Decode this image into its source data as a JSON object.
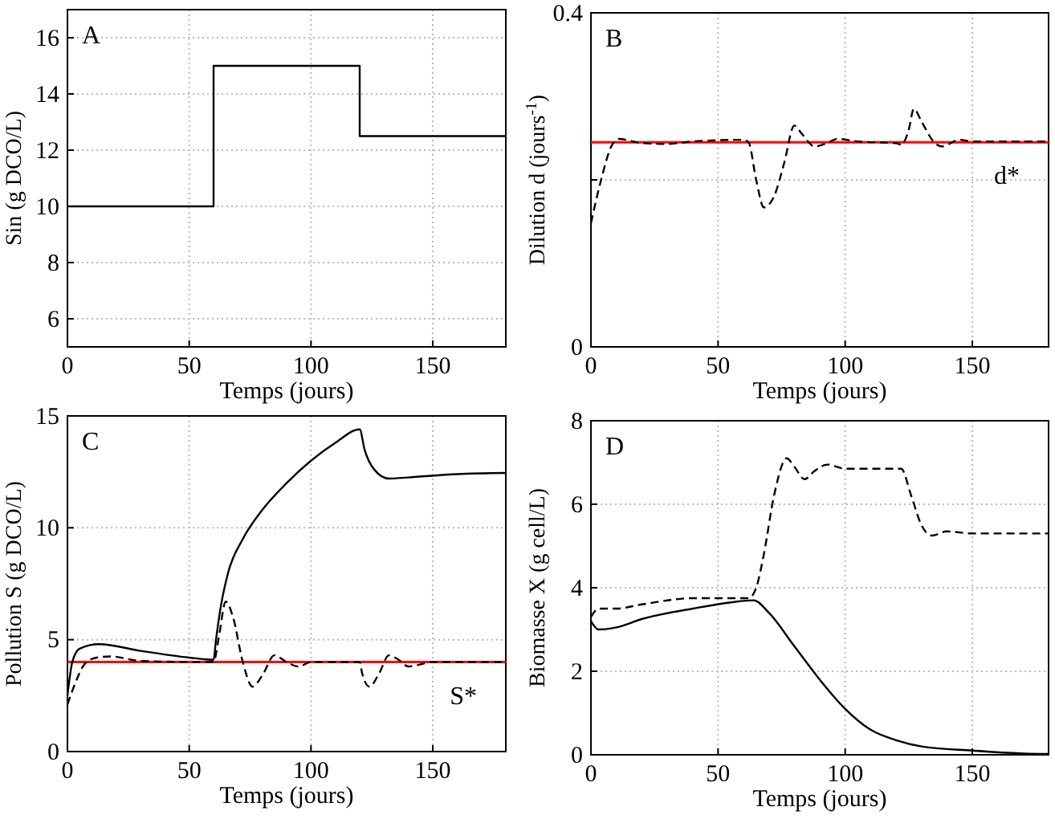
{
  "chart_data": [
    {
      "type": "step",
      "title": "A",
      "xlabel": "Temps (jours)",
      "ylabel": "Sin  (g DCO/L)",
      "xlim": [
        0,
        180
      ],
      "xticks": [
        0,
        50,
        100,
        150
      ],
      "ylim": [
        5,
        17
      ],
      "yticks": [
        6,
        8,
        10,
        12,
        14,
        16
      ],
      "grid": true,
      "series": [
        {
          "color": "#000000",
          "x": [
            0,
            60,
            120,
            180
          ],
          "values": [
            10,
            15,
            12.5,
            12.5
          ]
        }
      ]
    },
    {
      "type": "line",
      "title": "B",
      "xlabel": "Temps (jours)",
      "ylabel": "Dilution  d  (jours$^{-1}$)",
      "xlim": [
        0,
        180
      ],
      "xticks": [
        0,
        50,
        100,
        150
      ],
      "ylim": [
        0,
        0.4
      ],
      "yticks": [
        0,
        {
          "value": 0.2,
          "label": null
        },
        0.4
      ],
      "grid": true,
      "ref_lines": [
        {
          "axis": "y",
          "value": 0.245,
          "label": "d*",
          "color": "#ff0000"
        }
      ],
      "series": [
        {
          "color": "#000000",
          "line_style": "dashed",
          "x": [
            0,
            4,
            8,
            11,
            20,
            30,
            40,
            60,
            62,
            65,
            68,
            72,
            76,
            80,
            83,
            88,
            92,
            97,
            105,
            120,
            122,
            125,
            127,
            130,
            135,
            138,
            145,
            150,
            180
          ],
          "values": [
            0.148,
            0.2,
            0.24,
            0.249,
            0.244,
            0.243,
            0.246,
            0.248,
            0.245,
            0.2,
            0.167,
            0.18,
            0.22,
            0.265,
            0.255,
            0.24,
            0.243,
            0.249,
            0.246,
            0.244,
            0.242,
            0.26,
            0.285,
            0.27,
            0.245,
            0.24,
            0.248,
            0.246,
            0.246
          ]
        }
      ]
    },
    {
      "type": "line",
      "title": "C",
      "xlabel": "Temps (jours)",
      "ylabel": "Pollution  S  (g DCO/L)",
      "xlim": [
        0,
        180
      ],
      "xticks": [
        0,
        50,
        100,
        150
      ],
      "ylim": [
        0,
        15
      ],
      "yticks": [
        0,
        5,
        10,
        15
      ],
      "grid": true,
      "ref_lines": [
        {
          "axis": "y",
          "value": 4,
          "label": "S*",
          "color": "#ff0000"
        }
      ],
      "series": [
        {
          "color": "#000000",
          "line_style": "solid",
          "x": [
            0,
            2,
            5,
            13,
            30,
            50,
            60,
            61,
            63,
            66,
            72,
            80,
            90,
            100,
            110,
            120,
            122,
            126,
            132,
            140,
            160,
            180
          ],
          "values": [
            2.5,
            4,
            4.6,
            4.8,
            4.5,
            4.2,
            4.1,
            5,
            6.5,
            8,
            9.5,
            10.8,
            12,
            13,
            13.8,
            14.4,
            13.5,
            12.6,
            12.2,
            12.25,
            12.4,
            12.45
          ]
        },
        {
          "color": "#000000",
          "line_style": "dashed",
          "x": [
            0,
            3,
            7,
            12,
            18,
            30,
            60,
            62,
            65,
            68,
            72,
            76,
            80,
            85,
            90,
            95,
            100,
            120,
            121,
            124,
            128,
            132,
            136,
            140,
            145,
            150,
            180
          ],
          "values": [
            2.1,
            3,
            3.9,
            4.2,
            4.25,
            4.05,
            4,
            5,
            6.7,
            6,
            4,
            2.9,
            3.4,
            4.3,
            4,
            3.8,
            4,
            4,
            3.5,
            2.9,
            3.5,
            4.3,
            4.1,
            3.8,
            3.9,
            4,
            4
          ]
        }
      ]
    },
    {
      "type": "line",
      "title": "D",
      "xlabel": "Temps (jours)",
      "ylabel": "Biomasse  X  (g cell/L)",
      "xlim": [
        0,
        180
      ],
      "xticks": [
        0,
        50,
        100,
        150
      ],
      "ylim": [
        0,
        8
      ],
      "yticks": [
        0,
        2,
        4,
        6,
        8
      ],
      "grid": true,
      "series": [
        {
          "color": "#000000",
          "line_style": "dashed",
          "x": [
            0,
            3,
            10,
            20,
            40,
            62,
            65,
            68,
            72,
            77,
            80,
            84,
            88,
            93,
            100,
            110,
            122,
            126,
            130,
            134,
            140,
            150,
            180
          ],
          "values": [
            3.3,
            3.5,
            3.5,
            3.6,
            3.75,
            3.75,
            4,
            4.8,
            6.2,
            7.1,
            6.9,
            6.6,
            6.8,
            6.95,
            6.85,
            6.85,
            6.85,
            6.2,
            5.5,
            5.25,
            5.35,
            5.3,
            5.3
          ]
        },
        {
          "color": "#000000",
          "line_style": "solid",
          "x": [
            0,
            3,
            10,
            20,
            40,
            55,
            64,
            70,
            80,
            90,
            100,
            110,
            120,
            130,
            150,
            170,
            180
          ],
          "values": [
            3.2,
            3,
            3.05,
            3.25,
            3.5,
            3.65,
            3.7,
            3.4,
            2.6,
            1.8,
            1.1,
            0.6,
            0.35,
            0.2,
            0.1,
            0.03,
            0.02
          ]
        }
      ]
    }
  ]
}
